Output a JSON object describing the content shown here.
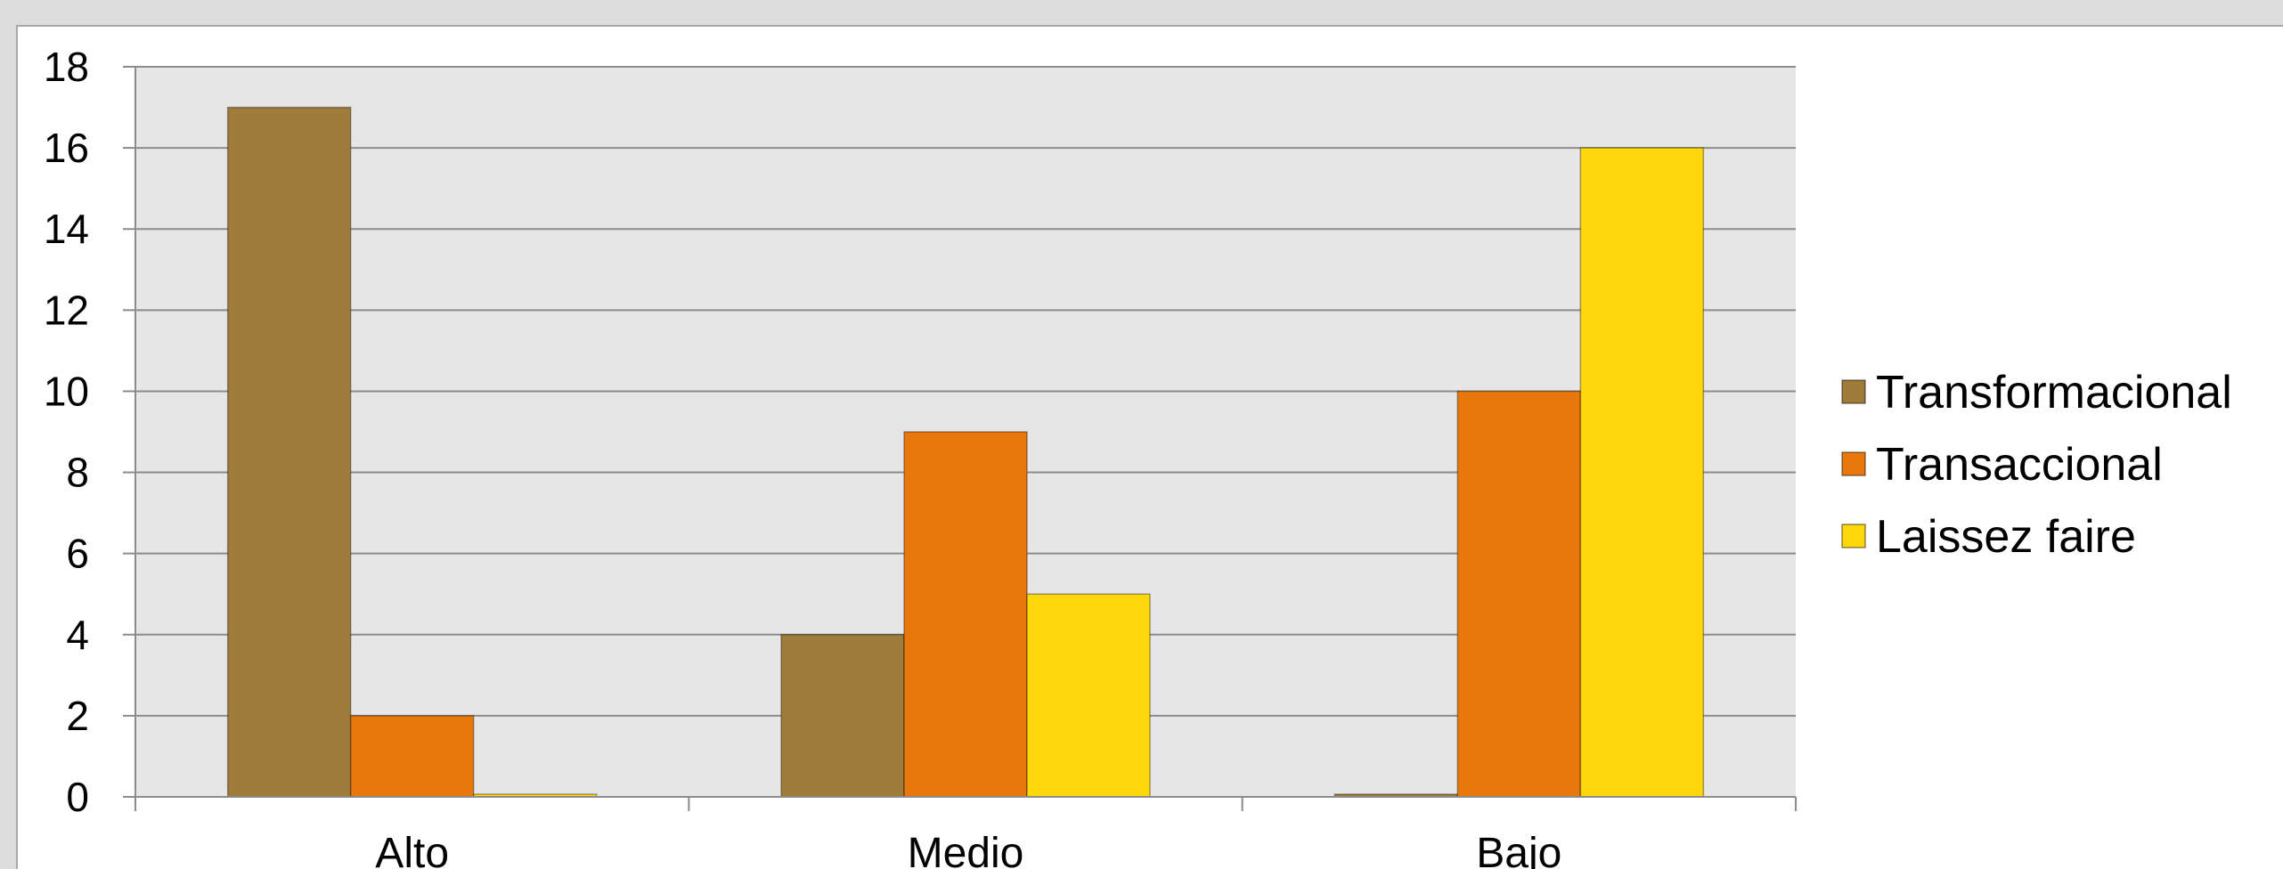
{
  "chart_data": {
    "type": "bar",
    "title": "",
    "xlabel": "",
    "ylabel": "",
    "categories": [
      "Alto",
      "Medio",
      "Bajo"
    ],
    "series": [
      {
        "name": "Transformacional",
        "values": [
          17,
          4,
          0
        ],
        "color": "#A07C3A"
      },
      {
        "name": "Transaccional",
        "values": [
          2,
          9,
          10
        ],
        "color": "#E9780C"
      },
      {
        "name": "Laissez faire",
        "values": [
          0,
          5,
          16
        ],
        "color": "#FFD70A"
      }
    ],
    "ylim": [
      0,
      18
    ],
    "yticks": [
      0,
      2,
      4,
      6,
      8,
      10,
      12,
      14,
      16,
      18
    ],
    "grid": true,
    "legend_position": "right",
    "plot_background": "#E6E6E6"
  }
}
